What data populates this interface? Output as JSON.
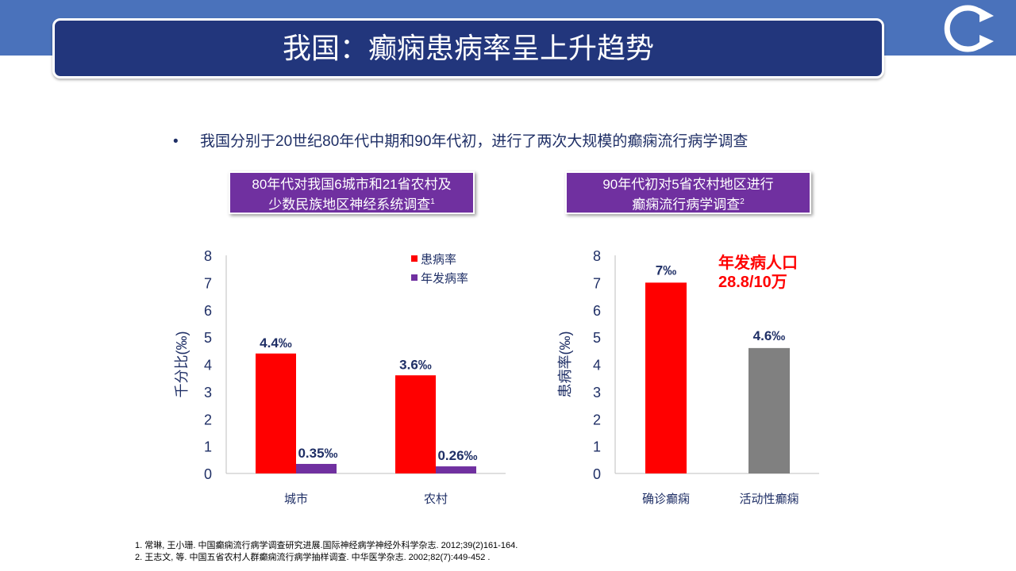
{
  "title": "我国：癫痫患病率呈上升趋势",
  "bullet": "我国分别于20世纪80年代中期和90年代初，进行了两次大规模的癫痫流行病学调查",
  "subtitles": [
    {
      "line1": "80年代对我国6城市和21省农村及",
      "line2": "少数民族地区神经系统调查",
      "sup": "1"
    },
    {
      "line1": "90年代初对5省农村地区进行",
      "line2": "癫痫流行病学调查",
      "sup": "2"
    }
  ],
  "chart_data": [
    {
      "type": "bar",
      "ylabel": "千分比(‰)",
      "ylim": [
        0,
        8
      ],
      "yticks": [
        0,
        1,
        2,
        3,
        4,
        5,
        6,
        7,
        8
      ],
      "grid": false,
      "legend": "top-right",
      "categories": [
        "城市",
        "农村"
      ],
      "series": [
        {
          "name": "患病率",
          "color": "#ff0000",
          "values": [
            4.4,
            3.6
          ],
          "labels": [
            "4.4‰",
            "3.6‰"
          ]
        },
        {
          "name": "年发病率",
          "color": "#7030a0",
          "values": [
            0.35,
            0.26
          ],
          "labels": [
            "0.35‰",
            "0.26‰"
          ]
        }
      ]
    },
    {
      "type": "bar",
      "ylabel": "患病率(‰)",
      "ylim": [
        0,
        8
      ],
      "yticks": [
        0,
        1,
        2,
        3,
        4,
        5,
        6,
        7,
        8
      ],
      "grid": false,
      "categories": [
        "确诊癫痫",
        "活动性癫痫"
      ],
      "values": [
        7,
        4.6
      ],
      "colors": [
        "#ff0000",
        "#808080"
      ],
      "labels": [
        "7‰",
        "4.6‰"
      ],
      "annotation": {
        "line1": "年发病人口",
        "line2": "28.8/10万",
        "color": "#ff0000"
      }
    }
  ],
  "references": [
    "1. 常琳, 王小珊. 中国癫痫流行病学调查研究进展.国际神经病学神经外科学杂志. 2012;39(2)161-164.",
    "2. 王志文, 等. 中国五省农村人群癫痫流行病学抽样调查. 中华医学杂志. 2002;82(7):449-452 ."
  ]
}
